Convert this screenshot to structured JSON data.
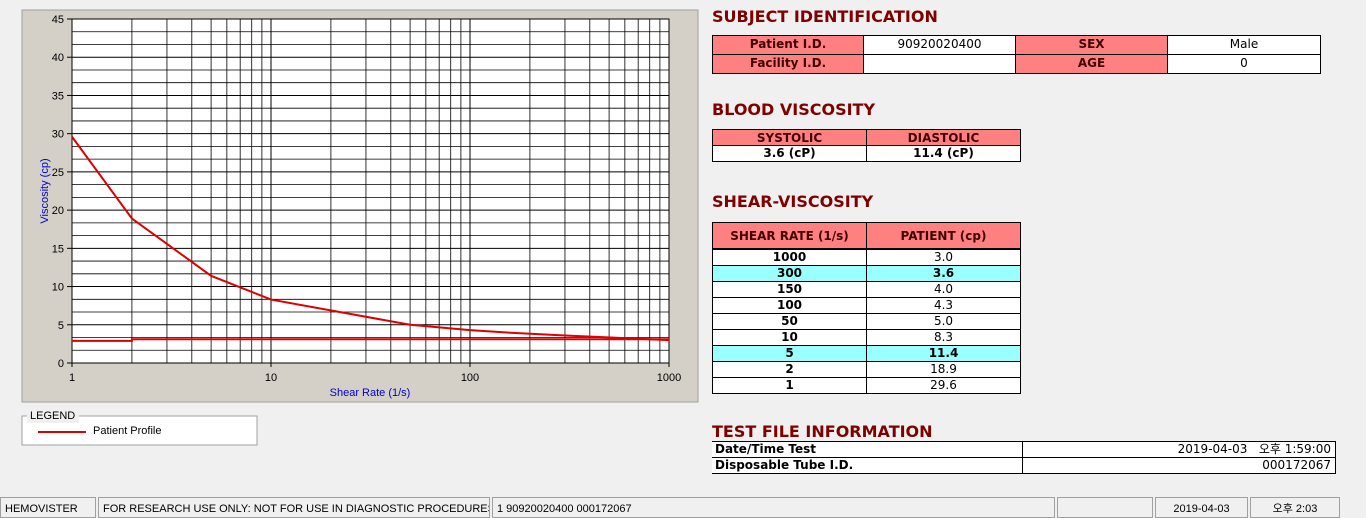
{
  "chart_data": {
    "type": "line",
    "x_label": "Shear Rate (1/s)",
    "y_label": "Viscosity (cp)",
    "xscale": "log",
    "xlim": [
      1,
      1000
    ],
    "xticks": [
      1,
      10,
      100,
      1000
    ],
    "ylim": [
      0,
      45
    ],
    "yticks": [
      0,
      5,
      10,
      15,
      20,
      25,
      30,
      35,
      40,
      45
    ],
    "grid": true,
    "minor_grid": true,
    "legend_title": "LEGEND",
    "series": [
      {
        "name": "Patient Profile",
        "color": "#dd0000",
        "x": [
          1,
          2,
          5,
          10,
          50,
          100,
          150,
          300,
          1000
        ],
        "values": [
          29.6,
          18.9,
          11.4,
          8.3,
          5.0,
          4.3,
          4.0,
          3.6,
          3.0
        ]
      },
      {
        "color": "#dd0000",
        "x": [
          1,
          2,
          2,
          1000
        ],
        "values": [
          2.9,
          2.9,
          3.1,
          3.1
        ]
      }
    ]
  },
  "subject": {
    "title": "SUBJECT IDENTIFICATION",
    "rows": [
      {
        "label": "Patient I.D.",
        "value": "90920020400",
        "label2": "SEX",
        "value2": "Male"
      },
      {
        "label": "Facility I.D.",
        "label2": "AGE",
        "value2": "0"
      }
    ]
  },
  "blood": {
    "title": "BLOOD VISCOSITY",
    "headers": [
      "SYSTOLIC",
      "DIASTOLIC"
    ],
    "values": [
      "3.6 (cP)",
      "11.4 (cP)"
    ]
  },
  "shear": {
    "title": "SHEAR-VISCOSITY",
    "headers": [
      "SHEAR RATE (1/s)",
      "PATIENT (cp)"
    ],
    "rows": [
      [
        "1000",
        "3.0"
      ],
      [
        "300",
        "3.6"
      ],
      [
        "150",
        "4.0"
      ],
      [
        "100",
        "4.3"
      ],
      [
        "50",
        "5.0"
      ],
      [
        "10",
        "8.3"
      ],
      [
        "5",
        "11.4"
      ],
      [
        "2",
        "18.9"
      ],
      [
        "1",
        "29.6"
      ]
    ],
    "highlight_rows": [
      1,
      6
    ],
    "highlight_color": "#99ffff"
  },
  "test_file": {
    "title": "TEST FILE INFORMATION",
    "rows": [
      [
        "Date/Time Test",
        "2019-04-03   오후 1:59:00"
      ],
      [
        "Disposable Tube I.D.",
        "000172067"
      ]
    ]
  },
  "status_bar": [
    "HEMOVISTER",
    "FOR RESEARCH USE ONLY: NOT FOR USE IN DIAGNOSTIC PROCEDURES",
    "1  90920020400  000172067",
    "2019-04-03",
    "오후 2:03"
  ]
}
